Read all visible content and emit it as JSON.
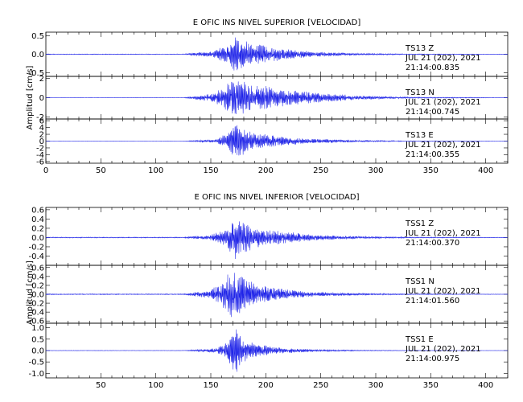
{
  "colors": {
    "trace": "#1f24e8",
    "axes": "#000000",
    "background": "#ffffff"
  },
  "chart_data": [
    {
      "type": "line",
      "title": "E OFIC INS NIVEL SUPERIOR [VELOCIDAD]",
      "ylabel": "Amplitud [cm/s]",
      "xlim": [
        0,
        420
      ],
      "x_ticks": [
        "0",
        "50",
        "100",
        "150",
        "200",
        "250",
        "300",
        "350",
        "400"
      ],
      "grid": false,
      "series": [
        {
          "name": "TS13   Z",
          "date": "JUL 21 (202), 2021",
          "time": "21:14:00.835",
          "ylim": [
            -0.6,
            0.6
          ],
          "y_ticks": [
            "0.5",
            "0.0",
            "-0.5"
          ],
          "envelope_x": [
            0,
            125,
            150,
            165,
            172,
            178,
            190,
            210,
            240,
            280,
            330,
            420
          ],
          "envelope_y": [
            0.01,
            0.01,
            0.08,
            0.25,
            0.5,
            0.4,
            0.3,
            0.18,
            0.08,
            0.03,
            0.012,
            0.006
          ]
        },
        {
          "name": "TS13   N",
          "date": "JUL 21 (202), 2021",
          "time": "21:14:00.745",
          "ylim": [
            -2.2,
            2.2
          ],
          "y_ticks": [
            "2",
            "0",
            "-2"
          ],
          "envelope_x": [
            0,
            125,
            150,
            162,
            170,
            178,
            190,
            210,
            240,
            280,
            330,
            420
          ],
          "envelope_y": [
            0.02,
            0.02,
            0.4,
            1.2,
            2.0,
            1.8,
            1.5,
            1.0,
            0.6,
            0.25,
            0.08,
            0.02
          ]
        },
        {
          "name": "TS13   E",
          "date": "JUL 21 (202), 2021",
          "time": "21:14:00.355",
          "ylim": [
            -6.5,
            6.5
          ],
          "y_ticks": [
            "6",
            "4",
            "2",
            "0",
            "-2",
            "-4",
            "-6"
          ],
          "envelope_x": [
            0,
            125,
            155,
            165,
            172,
            178,
            190,
            210,
            240,
            280,
            330,
            420
          ],
          "envelope_y": [
            0.05,
            0.05,
            0.6,
            2.5,
            5.5,
            4.5,
            2.5,
            1.5,
            0.7,
            0.3,
            0.1,
            0.05
          ]
        }
      ]
    },
    {
      "type": "line",
      "title": "E OFIC INS NIVEL INFERIOR [VELOCIDAD]",
      "ylabel": "Amplitud [cm/s]",
      "xlim": [
        0,
        420
      ],
      "x_ticks": [
        "50",
        "100",
        "150",
        "200",
        "250",
        "300",
        "350",
        "400"
      ],
      "grid": false,
      "series": [
        {
          "name": "TSS1   Z",
          "date": "JUL 21 (202), 2021",
          "time": "21:14:00.370",
          "ylim": [
            -0.6,
            0.65
          ],
          "y_ticks": [
            "0.6",
            "0.4",
            "0.2",
            "0.0",
            "-0.2",
            "-0.4"
          ],
          "envelope_x": [
            0,
            125,
            150,
            165,
            172,
            178,
            190,
            210,
            240,
            280,
            330,
            420
          ],
          "envelope_y": [
            0.01,
            0.01,
            0.06,
            0.2,
            0.55,
            0.35,
            0.25,
            0.15,
            0.07,
            0.03,
            0.012,
            0.006
          ]
        },
        {
          "name": "TSS1   N",
          "date": "JUL 21 (202), 2021",
          "time": "21:14:01.560",
          "ylim": [
            -0.65,
            0.65
          ],
          "y_ticks": [
            "0.6",
            "0.4",
            "0.2",
            "0.0",
            "-0.2",
            "-0.4",
            "-0.6"
          ],
          "envelope_x": [
            0,
            125,
            150,
            160,
            168,
            175,
            185,
            205,
            240,
            280,
            330,
            420
          ],
          "envelope_y": [
            0.01,
            0.01,
            0.1,
            0.3,
            0.55,
            0.45,
            0.3,
            0.15,
            0.06,
            0.025,
            0.01,
            0.005
          ]
        },
        {
          "name": "TSS1   E",
          "date": "JUL 21 (202), 2021",
          "time": "21:14:00.975",
          "ylim": [
            -1.2,
            1.2
          ],
          "y_ticks": [
            "1.0",
            "0.5",
            "0.0",
            "-0.5",
            "-1.0"
          ],
          "envelope_x": [
            0,
            125,
            155,
            165,
            172,
            178,
            190,
            210,
            240,
            280,
            330,
            420
          ],
          "envelope_y": [
            0.01,
            0.01,
            0.1,
            0.4,
            1.1,
            0.6,
            0.3,
            0.15,
            0.06,
            0.025,
            0.01,
            0.005
          ]
        }
      ]
    }
  ]
}
